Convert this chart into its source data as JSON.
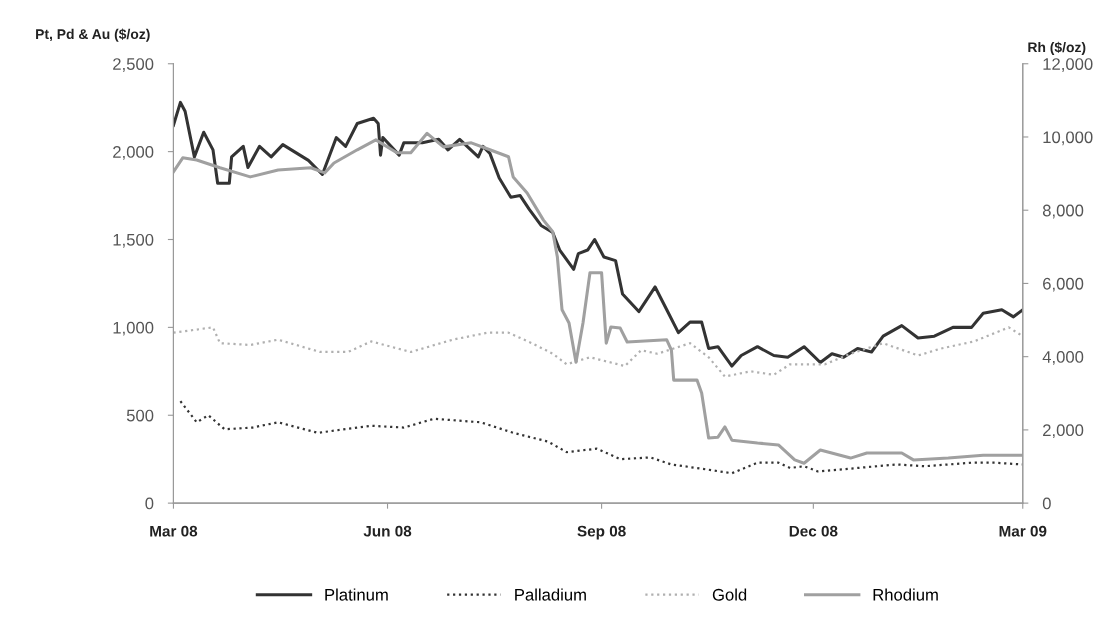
{
  "chart_data": {
    "type": "line",
    "ylabel": "Pt, Pd & Au ($/oz)",
    "y2label": "Rh ($/oz)",
    "xlim": [
      "2008-03-01",
      "2009-03-01"
    ],
    "xticks": [
      {
        "value": "2008-03-01",
        "label": "Mar 08"
      },
      {
        "value": "2008-06-01",
        "label": "Jun 08"
      },
      {
        "value": "2008-09-01",
        "label": "Sep 08"
      },
      {
        "value": "2008-12-01",
        "label": "Dec 08"
      },
      {
        "value": "2009-03-01",
        "label": "Mar 09"
      }
    ],
    "ylim": [
      0,
      2500
    ],
    "yticks": [
      0,
      500,
      {
        "value": 1000,
        "label": "1,000"
      },
      {
        "value": 1500,
        "label": "1,500"
      },
      {
        "value": 2000,
        "label": "2,000"
      },
      {
        "value": 2500,
        "label": "2,500"
      }
    ],
    "y2lim": [
      0,
      12000
    ],
    "y2ticks": [
      0,
      {
        "value": 2000,
        "label": "2,000"
      },
      {
        "value": 4000,
        "label": "4,000"
      },
      {
        "value": 6000,
        "label": "6,000"
      },
      {
        "value": 8000,
        "label": "8,000"
      },
      {
        "value": 10000,
        "label": "10,000"
      },
      {
        "value": 12000,
        "label": "12,000"
      }
    ],
    "grid": false,
    "legend": "bottom",
    "series": [
      {
        "name": "Platinum",
        "color": "#333333",
        "line_style": "solid",
        "x": [
          "2008-03-01",
          "2008-03-04",
          "2008-03-06",
          "2008-03-10",
          "2008-03-14",
          "2008-03-18",
          "2008-03-20",
          "2008-03-25",
          "2008-03-26",
          "2008-03-31",
          "2008-04-02",
          "2008-04-07",
          "2008-04-12",
          "2008-04-17",
          "2008-04-28",
          "2008-05-04",
          "2008-05-10",
          "2008-05-14",
          "2008-05-19",
          "2008-05-26",
          "2008-05-28",
          "2008-05-29",
          "2008-05-30",
          "2008-06-06",
          "2008-06-08",
          "2008-06-16",
          "2008-06-23",
          "2008-06-27",
          "2008-07-02",
          "2008-07-10",
          "2008-07-12",
          "2008-07-15",
          "2008-07-19",
          "2008-07-24",
          "2008-07-28",
          "2008-08-01",
          "2008-08-06",
          "2008-08-11",
          "2008-08-14",
          "2008-08-20",
          "2008-08-22",
          "2008-08-26",
          "2008-08-29",
          "2008-09-02",
          "2008-09-07",
          "2008-09-10",
          "2008-09-17",
          "2008-09-24",
          "2008-09-29",
          "2008-10-04",
          "2008-10-09",
          "2008-10-14",
          "2008-10-17",
          "2008-10-21",
          "2008-10-27",
          "2008-10-31",
          "2008-11-07",
          "2008-11-14",
          "2008-11-20",
          "2008-11-27",
          "2008-12-04",
          "2008-12-09",
          "2008-12-14",
          "2008-12-20",
          "2008-12-26",
          "2008-12-31",
          "2009-01-08",
          "2009-01-15",
          "2009-01-22",
          "2009-01-30",
          "2009-02-07",
          "2009-02-12",
          "2009-02-20",
          "2009-02-25",
          "2009-03-01"
        ],
        "values": [
          2150,
          2280,
          2230,
          1970,
          2110,
          2010,
          1820,
          1820,
          1970,
          2030,
          1910,
          2030,
          1970,
          2040,
          1950,
          1870,
          2080,
          2030,
          2160,
          2190,
          2160,
          1980,
          2080,
          1980,
          2050,
          2050,
          2070,
          2010,
          2070,
          1970,
          2030,
          1990,
          1850,
          1740,
          1750,
          1670,
          1580,
          1540,
          1440,
          1330,
          1420,
          1440,
          1500,
          1400,
          1380,
          1190,
          1090,
          1230,
          1100,
          970,
          1030,
          1030,
          880,
          890,
          780,
          840,
          890,
          840,
          830,
          890,
          800,
          850,
          830,
          880,
          860,
          950,
          1010,
          940,
          950,
          1000,
          1000,
          1080,
          1100,
          1060,
          1100
        ]
      },
      {
        "name": "Palladium",
        "color": "#333333",
        "line_style": "dotted",
        "x": [
          "2008-03-04",
          "2008-03-11",
          "2008-03-16",
          "2008-03-23",
          "2008-04-04",
          "2008-04-15",
          "2008-05-02",
          "2008-05-25",
          "2008-06-08",
          "2008-06-21",
          "2008-07-11",
          "2008-07-25",
          "2008-08-09",
          "2008-08-17",
          "2008-08-30",
          "2008-09-09",
          "2008-09-22",
          "2008-10-01",
          "2008-10-17",
          "2008-10-27",
          "2008-11-07",
          "2008-11-16",
          "2008-11-21",
          "2008-11-27",
          "2008-12-03",
          "2008-12-20",
          "2009-01-06",
          "2009-01-18",
          "2009-02-07",
          "2009-02-17",
          "2009-03-01"
        ],
        "values": [
          580,
          460,
          500,
          420,
          430,
          460,
          400,
          440,
          430,
          480,
          460,
          400,
          350,
          290,
          310,
          250,
          260,
          220,
          190,
          170,
          230,
          230,
          200,
          210,
          180,
          200,
          220,
          210,
          230,
          230,
          220
        ]
      },
      {
        "name": "Gold",
        "color": "#b0b0b0",
        "line_style": "dotted",
        "x": [
          "2008-03-01",
          "2008-03-18",
          "2008-03-21",
          "2008-04-03",
          "2008-04-15",
          "2008-05-03",
          "2008-05-15",
          "2008-05-25",
          "2008-06-11",
          "2008-06-29",
          "2008-07-14",
          "2008-07-23",
          "2008-08-02",
          "2008-08-11",
          "2008-08-17",
          "2008-08-27",
          "2008-09-11",
          "2008-09-18",
          "2008-09-25",
          "2008-10-09",
          "2008-10-17",
          "2008-10-24",
          "2008-11-04",
          "2008-11-14",
          "2008-11-21",
          "2008-12-06",
          "2008-12-17",
          "2008-12-31",
          "2009-01-15",
          "2009-01-25",
          "2009-02-08",
          "2009-02-23",
          "2009-03-01"
        ],
        "values": [
          970,
          1000,
          910,
          900,
          930,
          860,
          860,
          920,
          860,
          930,
          970,
          970,
          910,
          850,
          790,
          830,
          780,
          870,
          850,
          910,
          830,
          720,
          750,
          730,
          790,
          790,
          850,
          910,
          840,
          880,
          920,
          1000,
          950
        ]
      },
      {
        "name": "Rhodium",
        "color": "#a0a0a0",
        "line_style": "solid",
        "axis": "y2",
        "x": [
          "2008-03-01",
          "2008-03-05",
          "2008-03-11",
          "2008-03-21",
          "2008-04-03",
          "2008-04-15",
          "2008-04-29",
          "2008-05-05",
          "2008-05-09",
          "2008-05-19",
          "2008-05-27",
          "2008-06-05",
          "2008-06-11",
          "2008-06-18",
          "2008-06-25",
          "2008-07-07",
          "2008-07-15",
          "2008-07-23",
          "2008-07-25",
          "2008-07-31",
          "2008-08-07",
          "2008-08-11",
          "2008-08-13",
          "2008-08-15",
          "2008-08-18",
          "2008-08-21",
          "2008-08-24",
          "2008-08-27",
          "2008-09-01",
          "2008-09-03",
          "2008-09-05",
          "2008-09-09",
          "2008-09-12",
          "2008-09-29",
          "2008-10-01",
          "2008-10-02",
          "2008-10-12",
          "2008-10-14",
          "2008-10-17",
          "2008-10-21",
          "2008-10-24",
          "2008-10-27",
          "2008-11-07",
          "2008-11-16",
          "2008-11-23",
          "2008-11-27",
          "2008-12-04",
          "2008-12-17",
          "2008-12-24",
          "2009-01-08",
          "2009-01-13",
          "2009-01-28",
          "2009-02-12",
          "2009-03-01"
        ],
        "values": [
          9050,
          9430,
          9370,
          9160,
          8910,
          9100,
          9160,
          9020,
          9290,
          9650,
          9920,
          9570,
          9570,
          10100,
          9730,
          9840,
          9650,
          9460,
          8910,
          8470,
          7730,
          7410,
          6720,
          5280,
          4920,
          3850,
          4920,
          6290,
          6290,
          4370,
          4810,
          4780,
          4400,
          4460,
          4180,
          3360,
          3360,
          3010,
          1780,
          1800,
          2080,
          1720,
          1640,
          1590,
          1180,
          1090,
          1450,
          1230,
          1370,
          1370,
          1180,
          1230,
          1310,
          1310
        ]
      }
    ]
  }
}
